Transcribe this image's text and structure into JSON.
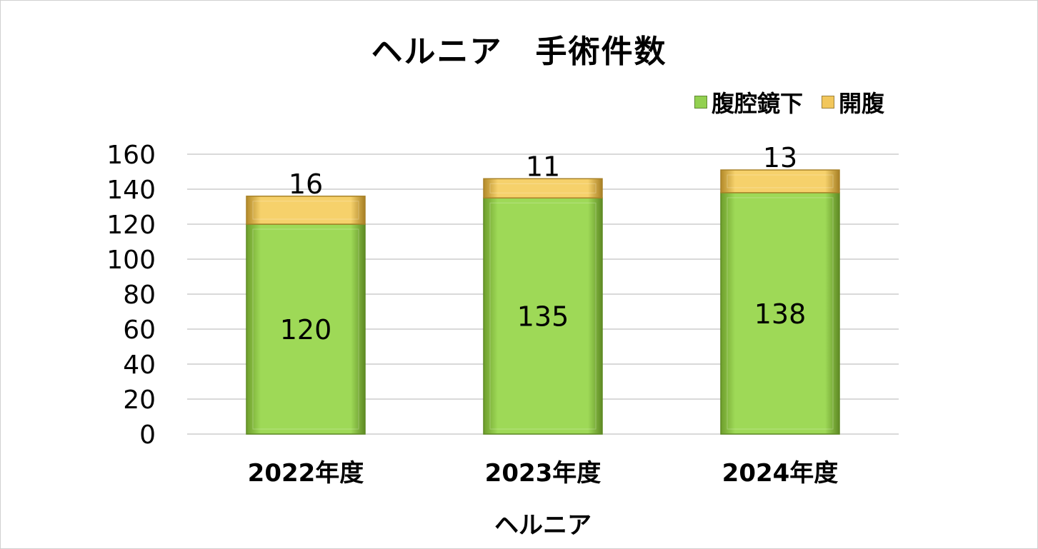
{
  "chart_data": {
    "type": "bar",
    "stacked": true,
    "title": "ヘルニア　手術件数",
    "categories": [
      "2022年度",
      "2023年度",
      "2024年度"
    ],
    "series": [
      {
        "name": "腹腔鏡下",
        "values": [
          120,
          135,
          138
        ],
        "color": "#92d050"
      },
      {
        "name": "開腹",
        "values": [
          16,
          11,
          13
        ],
        "color": "#f2c75c"
      }
    ],
    "ylim": [
      0,
      160
    ],
    "yticks": [
      0,
      20,
      40,
      60,
      80,
      100,
      120,
      140,
      160
    ],
    "xlabel": "ヘルニア",
    "ylabel": "",
    "grid": true,
    "legend": "top-right"
  }
}
